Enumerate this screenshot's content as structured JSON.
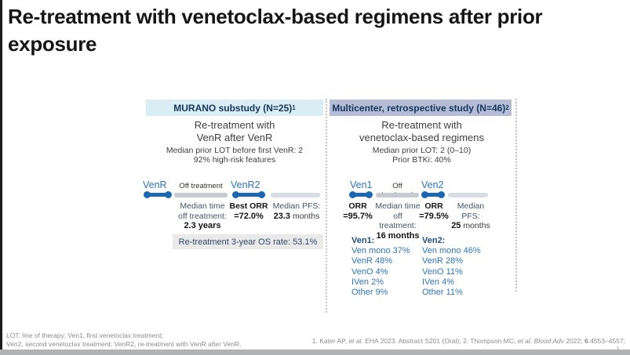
{
  "title": "Re-treatment with venetoclax-based regimens after prior exposure",
  "left_panel": {
    "header": "MURANO substudy (N=25)",
    "header_sup": "1",
    "subtitle": [
      "Re-treatment with",
      "VenR after VenR"
    ],
    "details": [
      "Median prior LOT before first VenR: 2",
      "92% high-risk features"
    ],
    "timeline": {
      "phase1": "VenR",
      "off": "Off treatment",
      "phase2": "VenR2"
    },
    "stats": {
      "time_lines": [
        "Median time",
        "off treatment:"
      ],
      "time_value": "2.3 years",
      "orr_label": "Best ORR",
      "orr_value": "=72.0%",
      "pfs_label": "Median PFS:",
      "pfs_value": "23.3",
      "pfs_suffix": " months"
    },
    "os_note": "Re-treatment 3-year OS rate: 53.1%"
  },
  "right_panel": {
    "header": "Multicenter, retrospective study (N=46)",
    "header_sup": "2",
    "subtitle": [
      "Re-treatment with",
      "venetoclax-based regimens"
    ],
    "details": [
      "Median prior LOT: 2 (0–10)",
      "Prior BTKi: 40%"
    ],
    "timeline": {
      "phase1": "Ven1",
      "off": "Off treatment",
      "phase2": "Ven2"
    },
    "stats": {
      "orr1_label": "ORR",
      "orr1_value": "=95.7%",
      "time_lines": [
        "Median time",
        "off treatment:"
      ],
      "time_value": "16 months",
      "orr2_label": "ORR",
      "orr2_value": "=79.5%",
      "pfs_label": "Median PFS:",
      "pfs_value": "25",
      "pfs_suffix": " months"
    },
    "regimen_lists": [
      {
        "heading": "Ven1:",
        "items": [
          "Ven mono 37%",
          "VenR 48%",
          "VenO 4%",
          "IVen 2%",
          "Other 9%"
        ]
      },
      {
        "heading": "Ven2:",
        "items": [
          "Ven mono 46%",
          "VenR 28%",
          "VenO 11%",
          "IVen 4%",
          "Other 11%"
        ]
      }
    ]
  },
  "footer": {
    "abbreviations": [
      "LOT, line of therapy; Ven1, first venetoclax treatment;",
      "Ven2, second venetoclax treatment; VenR2, re-treatment with VenR after VenR."
    ],
    "reference_parts": [
      {
        "t": "1. Kater AP, "
      },
      {
        "t": "et al.",
        "i": true
      },
      {
        "t": " EHA 2023. Abstract S201 (Oral); 2. Thompson MC, "
      },
      {
        "t": "et al.",
        "i": true
      },
      {
        "t": " "
      },
      {
        "t": "Blood Adv",
        "i": true
      },
      {
        "t": " 2022; "
      },
      {
        "t": "6",
        "b": true
      },
      {
        "t": ":4553–4557;"
      }
    ],
    "reference_overflow": ")"
  },
  "colors": {
    "left_header_bg": "#d8edf4",
    "right_header_bg": "#b5bdd6",
    "header_text": "#17365d",
    "accent_blue": "#2e75b6",
    "timeline_blue": "#1b67b3",
    "list_heading_blue": "#1f4e79",
    "os_box_bg": "#e9e9e9",
    "gray_segment": "#c7cbd1",
    "bottom_bar": "#b1b3b6"
  }
}
